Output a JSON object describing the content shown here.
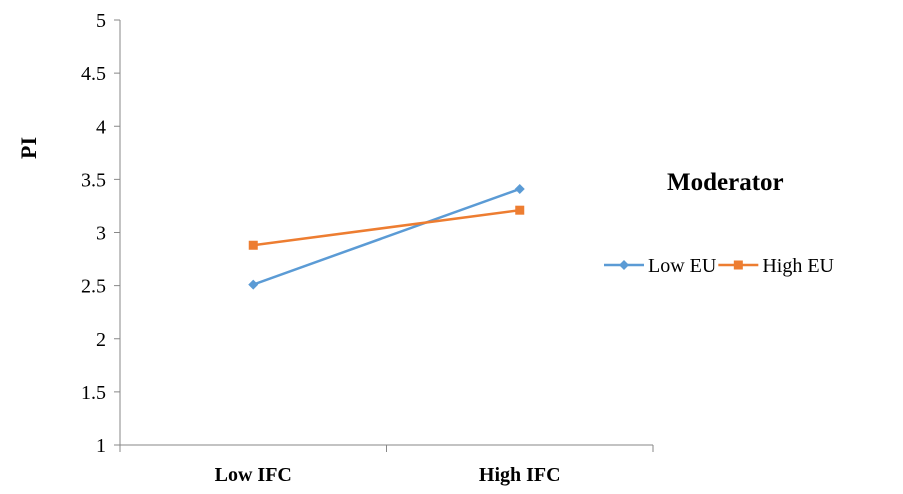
{
  "chart_data": {
    "type": "line",
    "categories": [
      "Low IFC",
      "High IFC"
    ],
    "series": [
      {
        "name": "Low EU",
        "values": [
          2.51,
          3.41
        ],
        "color": "#5B9BD5",
        "marker": "diamond"
      },
      {
        "name": "High EU",
        "values": [
          2.88,
          3.21
        ],
        "color": "#ED7D31",
        "marker": "square"
      }
    ],
    "ylabel": "PI",
    "xlabel": "",
    "ylim": [
      1,
      5
    ],
    "yticks": [
      "1",
      "1.5",
      "2",
      "2.5",
      "3",
      "3.5",
      "4",
      "4.5",
      "5"
    ],
    "grid": false,
    "legend": {
      "title": "Moderator",
      "placement": "right"
    }
  }
}
